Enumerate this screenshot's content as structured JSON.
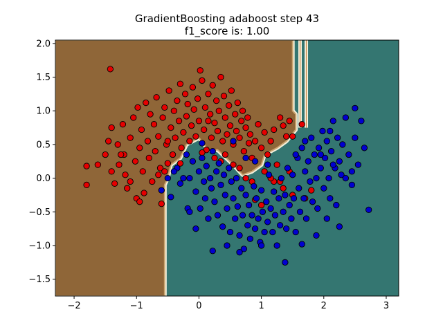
{
  "chart_data": {
    "type": "scatter",
    "title_lines": [
      "GradientBoosting adaboost step 43",
      "f1_score is: 1.00"
    ],
    "xlabel": "",
    "ylabel": "",
    "xlim": [
      -2.3,
      3.2
    ],
    "ylim": [
      -1.75,
      2.05
    ],
    "x_ticks": [
      -2,
      -1,
      0,
      1,
      2,
      3
    ],
    "y_ticks": [
      -1.5,
      -1.0,
      -0.5,
      0.0,
      0.5,
      1.0,
      1.5,
      2.0
    ],
    "x_tick_labels": [
      "−2",
      "−1",
      "0",
      "1",
      "2",
      "3"
    ],
    "y_tick_labels": [
      "−1.5",
      "−1.0",
      "−0.5",
      "0.0",
      "0.5",
      "1.0",
      "1.5",
      "2.0"
    ],
    "grid": false,
    "legend": "none",
    "colors": {
      "region_class_0": "#8f6638",
      "region_class_1": "#347671",
      "boundary_light": "#f5f0dc",
      "point_class_0": "#e60000",
      "point_class_1": "#0000d0",
      "point_edge": "#000000"
    },
    "decision_region": {
      "class_0_vertices": [
        [
          -2.3,
          2.05
        ],
        [
          1.5,
          2.05
        ],
        [
          1.5,
          1.0
        ],
        [
          1.55,
          0.95
        ],
        [
          1.55,
          0.72
        ],
        [
          1.4,
          0.55
        ],
        [
          1.25,
          0.45
        ],
        [
          1.05,
          0.35
        ],
        [
          1.0,
          0.2
        ],
        [
          0.85,
          0.1
        ],
        [
          0.7,
          0.05
        ],
        [
          0.55,
          0.2
        ],
        [
          0.3,
          0.42
        ],
        [
          0.15,
          0.42
        ],
        [
          0.0,
          0.6
        ],
        [
          -0.2,
          0.5
        ],
        [
          -0.3,
          0.3
        ],
        [
          -0.45,
          0.2
        ],
        [
          -0.5,
          0.0
        ],
        [
          -0.55,
          -0.1
        ],
        [
          -0.55,
          -1.75
        ],
        [
          -2.3,
          -1.75
        ]
      ],
      "boundary_stripes": [
        {
          "x": 1.62,
          "y_from": 0.75,
          "y_to": 2.05
        },
        {
          "x": 1.72,
          "y_from": 0.75,
          "y_to": 2.05
        }
      ]
    },
    "series": [
      {
        "class": 0,
        "color": "#e60000",
        "points": [
          [
            -1.8,
            0.18
          ],
          [
            -1.8,
            -0.1
          ],
          [
            -1.62,
            0.2
          ],
          [
            -1.5,
            0.35
          ],
          [
            -1.45,
            0.55
          ],
          [
            -1.4,
            0.75
          ],
          [
            -1.4,
            0.1
          ],
          [
            -1.35,
            -0.08
          ],
          [
            -1.3,
            0.5
          ],
          [
            -1.28,
            0.2
          ],
          [
            -1.22,
            0.8
          ],
          [
            -1.2,
            0.35
          ],
          [
            -1.18,
            0.05
          ],
          [
            -1.15,
            -0.15
          ],
          [
            -1.1,
            0.6
          ],
          [
            -1.05,
            0.9
          ],
          [
            -1.02,
            0.25
          ],
          [
            -1.0,
            -0.3
          ],
          [
            -0.98,
            1.05
          ],
          [
            -0.95,
            0.45
          ],
          [
            -0.92,
            0.72
          ],
          [
            -0.9,
            0.1
          ],
          [
            -0.88,
            -0.22
          ],
          [
            -0.85,
            1.12
          ],
          [
            -0.82,
            0.55
          ],
          [
            -0.8,
            0.3
          ],
          [
            -0.78,
            0.95
          ],
          [
            -0.75,
            -0.05
          ],
          [
            -0.72,
            0.8
          ],
          [
            -0.7,
            0.4
          ],
          [
            -0.68,
            1.2
          ],
          [
            -0.65,
            0.62
          ],
          [
            -0.62,
            0.15
          ],
          [
            -0.6,
            -0.38
          ],
          [
            -0.58,
            0.9
          ],
          [
            -0.55,
            1.05
          ],
          [
            -0.52,
            0.5
          ],
          [
            -0.5,
            0.22
          ],
          [
            -0.48,
            1.3
          ],
          [
            -0.45,
            0.75
          ],
          [
            -0.42,
            0.35
          ],
          [
            -0.4,
            1.0
          ],
          [
            -0.38,
            0.6
          ],
          [
            -0.35,
            1.15
          ],
          [
            -0.32,
            0.85
          ],
          [
            -0.3,
            1.4
          ],
          [
            -0.28,
            0.45
          ],
          [
            -0.25,
            0.68
          ],
          [
            -0.22,
            1.25
          ],
          [
            -0.2,
            0.92
          ],
          [
            -0.18,
            1.1
          ],
          [
            -0.15,
            0.55
          ],
          [
            -0.12,
            0.78
          ],
          [
            -0.1,
            1.35
          ],
          [
            -0.08,
            1.02
          ],
          [
            -0.05,
            0.62
          ],
          [
            -0.02,
            1.18
          ],
          [
            0.0,
            0.85
          ],
          [
            0.02,
            1.6
          ],
          [
            0.05,
            1.45
          ],
          [
            0.08,
            0.72
          ],
          [
            0.1,
            1.05
          ],
          [
            0.12,
            0.42
          ],
          [
            0.15,
            1.25
          ],
          [
            0.18,
            0.95
          ],
          [
            0.2,
            0.6
          ],
          [
            0.22,
            1.38
          ],
          [
            0.25,
            0.82
          ],
          [
            0.28,
            1.15
          ],
          [
            0.3,
            0.7
          ],
          [
            0.32,
            1.0
          ],
          [
            0.35,
            1.5
          ],
          [
            0.38,
            0.55
          ],
          [
            0.4,
            1.22
          ],
          [
            0.42,
            0.9
          ],
          [
            0.45,
            0.65
          ],
          [
            0.48,
            1.08
          ],
          [
            0.5,
            0.78
          ],
          [
            0.52,
            1.3
          ],
          [
            0.55,
            0.5
          ],
          [
            0.58,
            0.95
          ],
          [
            0.6,
            0.7
          ],
          [
            0.62,
            1.12
          ],
          [
            0.65,
            0.6
          ],
          [
            0.68,
            0.85
          ],
          [
            0.7,
            1.0
          ],
          [
            0.72,
            0.4
          ],
          [
            0.75,
            0.75
          ],
          [
            0.78,
            0.9
          ],
          [
            0.8,
            0.52
          ],
          [
            0.82,
            0.65
          ],
          [
            0.85,
            0.3
          ],
          [
            0.9,
            0.55
          ],
          [
            0.95,
            0.8
          ],
          [
            1.0,
            0.45
          ],
          [
            1.05,
            0.68
          ],
          [
            1.1,
            0.35
          ],
          [
            1.15,
            0.55
          ],
          [
            1.2,
            0.72
          ],
          [
            1.25,
            0.2
          ],
          [
            1.3,
            0.9
          ],
          [
            1.35,
            0.78
          ],
          [
            1.4,
            0.62
          ],
          [
            1.45,
            0.85
          ],
          [
            1.5,
            0.62
          ],
          [
            1.65,
            0.8
          ],
          [
            0.25,
            0.3
          ],
          [
            0.35,
            0.25
          ],
          [
            0.55,
            0.2
          ],
          [
            0.65,
            0.15
          ],
          [
            0.75,
            0.0
          ],
          [
            0.9,
            -0.32
          ],
          [
            1.0,
            -0.4
          ],
          [
            1.05,
            0.1
          ],
          [
            1.2,
            -0.05
          ],
          [
            1.35,
            -0.15
          ],
          [
            1.5,
            -0.25
          ],
          [
            1.7,
            -0.3
          ],
          [
            1.8,
            -0.18
          ],
          [
            1.45,
            0.1
          ],
          [
            -0.55,
            0.1
          ],
          [
            -0.5,
            0.55
          ],
          [
            -0.95,
            -0.35
          ],
          [
            -1.1,
            -0.05
          ],
          [
            -1.25,
            0.35
          ],
          [
            -0.65,
            0.05
          ],
          [
            -0.3,
            0.22
          ],
          [
            0.05,
            0.38
          ],
          [
            0.15,
            0.85
          ],
          [
            0.42,
            0.35
          ],
          [
            -1.42,
            1.62
          ],
          [
            0.85,
            -0.05
          ],
          [
            1.3,
            -0.05
          ],
          [
            1.15,
            0.0
          ]
        ]
      },
      {
        "class": 1,
        "color": "#0000d0",
        "points": [
          [
            -0.6,
            -0.18
          ],
          [
            -0.5,
            0.0
          ],
          [
            -0.45,
            -0.28
          ],
          [
            -0.35,
            0.15
          ],
          [
            -0.3,
            -0.08
          ],
          [
            -0.2,
            0.35
          ],
          [
            -0.18,
            -0.45
          ],
          [
            -0.15,
            0.0
          ],
          [
            -0.1,
            0.25
          ],
          [
            -0.05,
            -0.2
          ],
          [
            0.0,
            0.1
          ],
          [
            0.02,
            -0.45
          ],
          [
            0.05,
            0.3
          ],
          [
            0.08,
            -0.05
          ],
          [
            0.1,
            -0.3
          ],
          [
            0.12,
            0.18
          ],
          [
            0.15,
            -0.6
          ],
          [
            0.18,
            0.0
          ],
          [
            0.2,
            -0.15
          ],
          [
            0.22,
            0.4
          ],
          [
            0.25,
            -0.35
          ],
          [
            0.28,
            0.1
          ],
          [
            0.3,
            -0.55
          ],
          [
            0.32,
            0.22
          ],
          [
            0.35,
            -0.1
          ],
          [
            0.38,
            -0.72
          ],
          [
            0.4,
            0.05
          ],
          [
            0.42,
            -0.25
          ],
          [
            0.45,
            -0.45
          ],
          [
            0.48,
            0.15
          ],
          [
            0.5,
            -0.8
          ],
          [
            0.52,
            -0.05
          ],
          [
            0.55,
            -0.3
          ],
          [
            0.58,
            -0.6
          ],
          [
            0.6,
            0.0
          ],
          [
            0.62,
            -0.42
          ],
          [
            0.65,
            -0.85
          ],
          [
            0.68,
            -0.15
          ],
          [
            0.7,
            -0.55
          ],
          [
            0.72,
            -1.05
          ],
          [
            0.75,
            -0.25
          ],
          [
            0.78,
            -0.7
          ],
          [
            0.8,
            -0.4
          ],
          [
            0.82,
            -0.9
          ],
          [
            0.85,
            -0.55
          ],
          [
            0.88,
            -0.12
          ],
          [
            0.9,
            -0.75
          ],
          [
            0.92,
            -0.3
          ],
          [
            0.95,
            -0.6
          ],
          [
            0.98,
            -0.95
          ],
          [
            1.0,
            -0.18
          ],
          [
            1.02,
            -0.5
          ],
          [
            1.05,
            -0.8
          ],
          [
            1.08,
            -0.35
          ],
          [
            1.1,
            -0.65
          ],
          [
            1.12,
            0.05
          ],
          [
            1.15,
            -0.45
          ],
          [
            1.18,
            -0.8
          ],
          [
            1.2,
            -0.2
          ],
          [
            1.22,
            -0.55
          ],
          [
            1.25,
            -1.0
          ],
          [
            1.28,
            -0.3
          ],
          [
            1.3,
            -0.7
          ],
          [
            1.32,
            0.0
          ],
          [
            1.35,
            -0.5
          ],
          [
            1.38,
            -0.25
          ],
          [
            1.4,
            -0.75
          ],
          [
            1.42,
            0.15
          ],
          [
            1.45,
            -0.4
          ],
          [
            1.48,
            -0.6
          ],
          [
            1.5,
            0.05
          ],
          [
            1.52,
            -0.3
          ],
          [
            1.55,
            -0.8
          ],
          [
            1.58,
            0.3
          ],
          [
            1.6,
            -0.15
          ],
          [
            1.62,
            -0.5
          ],
          [
            1.65,
            0.45
          ],
          [
            1.68,
            -0.3
          ],
          [
            1.7,
            0.1
          ],
          [
            1.72,
            -0.6
          ],
          [
            1.75,
            0.25
          ],
          [
            1.78,
            -0.05
          ],
          [
            1.8,
            0.6
          ],
          [
            1.82,
            -0.35
          ],
          [
            1.85,
            0.35
          ],
          [
            1.88,
            0.0
          ],
          [
            1.9,
            -0.45
          ],
          [
            1.92,
            0.45
          ],
          [
            1.95,
            0.15
          ],
          [
            1.98,
            0.7
          ],
          [
            2.0,
            -0.15
          ],
          [
            2.02,
            0.3
          ],
          [
            2.05,
            0.55
          ],
          [
            2.08,
            0.0
          ],
          [
            2.1,
            -0.3
          ],
          [
            2.12,
            0.4
          ],
          [
            2.15,
            0.85
          ],
          [
            2.18,
            0.15
          ],
          [
            2.2,
            -0.4
          ],
          [
            2.22,
            0.6
          ],
          [
            2.25,
            0.25
          ],
          [
            2.28,
            0.05
          ],
          [
            2.3,
            0.5
          ],
          [
            2.35,
            0.9
          ],
          [
            2.4,
            0.35
          ],
          [
            2.45,
            0.1
          ],
          [
            2.5,
            0.6
          ],
          [
            2.55,
            0.2
          ],
          [
            2.6,
            0.85
          ],
          [
            2.65,
            0.45
          ],
          [
            2.72,
            -0.47
          ],
          [
            2.5,
            1.04
          ],
          [
            1.38,
            -1.25
          ],
          [
            1.65,
            -0.98
          ],
          [
            0.22,
            -1.08
          ],
          [
            2.25,
            -0.72
          ],
          [
            2.05,
            -0.6
          ],
          [
            1.88,
            -0.85
          ],
          [
            -0.15,
            -0.5
          ],
          [
            -0.05,
            -0.75
          ],
          [
            0.05,
            0.52
          ],
          [
            -0.25,
            0.0
          ],
          [
            -0.4,
            0.1
          ],
          [
            0.55,
            0.55
          ],
          [
            0.45,
            -1.0
          ],
          [
            0.65,
            -1.1
          ],
          [
            1.0,
            -1.0
          ],
          [
            2.35,
            0.0
          ],
          [
            2.45,
            -0.1
          ],
          [
            2.1,
            0.7
          ],
          [
            1.55,
            0.35
          ],
          [
            1.7,
            0.55
          ],
          [
            1.95,
            0.35
          ],
          [
            2.15,
            0.2
          ],
          [
            0.9,
            0.25
          ],
          [
            0.75,
            0.3
          ],
          [
            1.1,
            0.2
          ]
        ]
      }
    ]
  }
}
